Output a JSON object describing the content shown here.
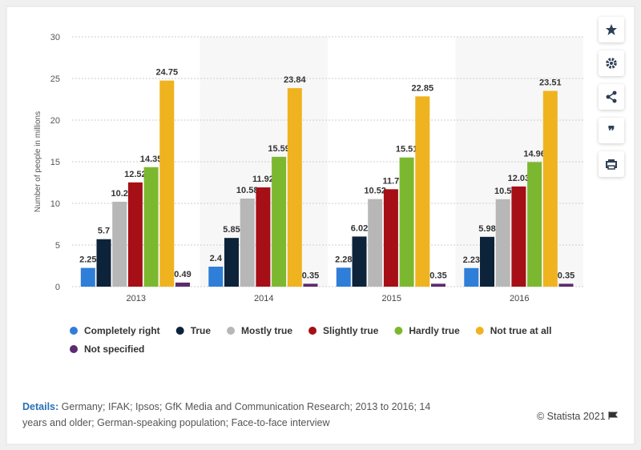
{
  "chart_data": {
    "type": "bar",
    "y_axis_label": "Number of people in millions",
    "categories": [
      "2013",
      "2014",
      "2015",
      "2016"
    ],
    "series": [
      {
        "name": "Completely right",
        "color": "#2f7ed8",
        "values": [
          2.25,
          2.4,
          2.28,
          2.23
        ]
      },
      {
        "name": "True",
        "color": "#0d233a",
        "values": [
          5.7,
          5.85,
          6.02,
          5.98
        ]
      },
      {
        "name": "Mostly true",
        "color": "#b7b7b7",
        "values": [
          10.2,
          10.58,
          10.52,
          10.5
        ]
      },
      {
        "name": "Slightly true",
        "color": "#a50f15",
        "values": [
          12.52,
          11.92,
          11.7,
          12.03
        ]
      },
      {
        "name": "Hardly true",
        "color": "#7cb82f",
        "values": [
          14.35,
          15.59,
          15.51,
          14.96
        ]
      },
      {
        "name": "Not true at all",
        "color": "#efb31f",
        "values": [
          24.75,
          23.84,
          22.85,
          23.51
        ]
      },
      {
        "name": "Not specified",
        "color": "#5c2a6e",
        "values": [
          0.49,
          0.35,
          0.35,
          0.35
        ]
      }
    ],
    "ylim": [
      0,
      30
    ],
    "yticks": [
      0,
      5,
      10,
      15,
      20,
      25,
      30
    ],
    "grid": true,
    "legend": "bottom"
  },
  "footer": {
    "details_label": "Details:",
    "details_text": "Germany; IFAK; Ipsos; GfK Media and Communication Research; 2013 to 2016; 14 years and older; German-speaking population; Face-to-face interview",
    "copyright": "© Statista 2021"
  }
}
